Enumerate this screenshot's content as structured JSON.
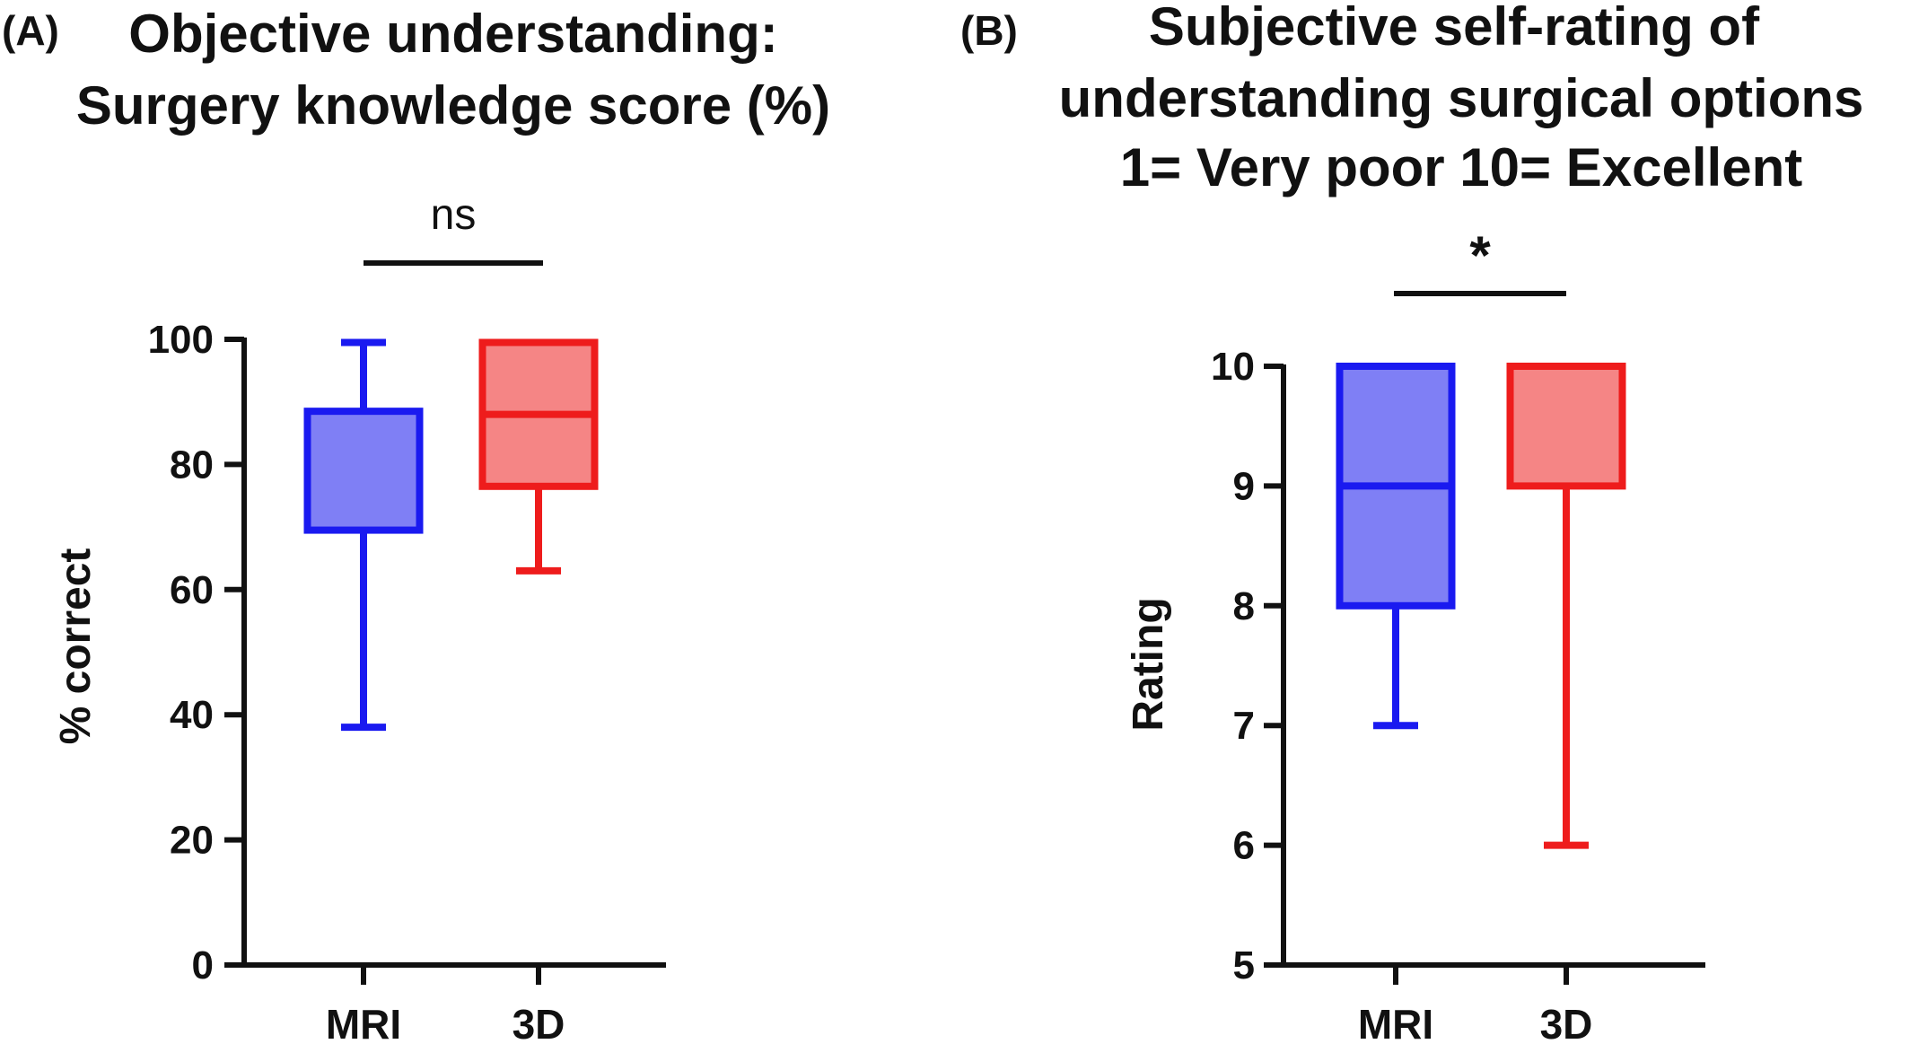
{
  "colors": {
    "mri_stroke": "#1a1af0",
    "mri_fill": "#7f7ff5",
    "d3_stroke": "#ee1c1c",
    "d3_fill": "#f58585",
    "axis": "#111111"
  },
  "chart_data": [
    {
      "type": "box",
      "panel_label": "(A)",
      "title_lines": [
        "Objective understanding:",
        "Surgery knowledge score (%)"
      ],
      "ylabel": "% correct",
      "xlabel": "",
      "ylim": [
        0,
        100
      ],
      "yticks": [
        0,
        20,
        40,
        60,
        80,
        100
      ],
      "ytick_labels": [
        "0",
        "20",
        "40",
        "60",
        "80",
        "100"
      ],
      "categories": [
        "MRI",
        "3D"
      ],
      "series": [
        {
          "category": "MRI",
          "min": 38,
          "q1": 69.5,
          "median": 88.5,
          "q3": 88.5,
          "max": 99.5
        },
        {
          "category": "3D",
          "min": 63,
          "q1": 76.5,
          "median": 88,
          "q3": 99.5,
          "max": 99.5
        }
      ],
      "significance": {
        "label": "ns",
        "between": [
          "MRI",
          "3D"
        ]
      },
      "grid": false
    },
    {
      "type": "box",
      "panel_label": "(B)",
      "title_lines": [
        "Subjective self-rating of",
        "understanding surgical options",
        "1= Very poor 10= Excellent"
      ],
      "ylabel": "Rating",
      "xlabel": "",
      "ylim": [
        5,
        10
      ],
      "yticks": [
        5,
        6,
        7,
        8,
        9,
        10
      ],
      "ytick_labels": [
        "5",
        "6",
        "7",
        "8",
        "9",
        "10"
      ],
      "categories": [
        "MRI",
        "3D"
      ],
      "series": [
        {
          "category": "MRI",
          "min": 7,
          "q1": 8,
          "median": 9,
          "q3": 10,
          "max": 10
        },
        {
          "category": "3D",
          "min": 6,
          "q1": 9,
          "median": 9,
          "q3": 10,
          "max": 10
        }
      ],
      "significance": {
        "label": "*",
        "between": [
          "MRI",
          "3D"
        ]
      },
      "grid": false
    }
  ]
}
